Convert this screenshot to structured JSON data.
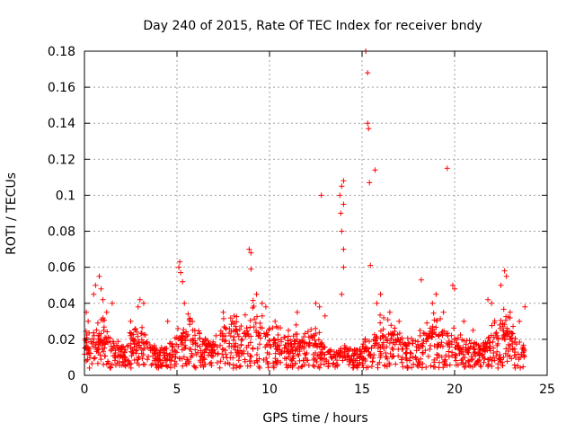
{
  "chart_data": {
    "type": "scatter",
    "title": "Day 240 of 2015, Rate Of TEC Index for receiver bndy",
    "xlabel": "GPS time / hours",
    "ylabel": "ROTI / TECUs",
    "xlim": [
      0,
      25
    ],
    "ylim": [
      0,
      0.18
    ],
    "xticks": [
      0,
      5,
      10,
      15,
      20,
      25
    ],
    "yticks": [
      0,
      0.02,
      0.04,
      0.06,
      0.08,
      0.1,
      0.12,
      0.14,
      0.16,
      0.18
    ],
    "xtick_labels": [
      "0",
      "5",
      "10",
      "15",
      "20",
      "25"
    ],
    "ytick_labels": [
      "0",
      "0.02",
      "0.04",
      "0.06",
      "0.08",
      "0.1",
      "0.12",
      "0.14",
      "0.16",
      "0.18"
    ],
    "grid": true,
    "marker": "+",
    "color": "#ff0000",
    "series": [
      {
        "name": "ROTI",
        "points": [
          [
            0.1,
            0.035
          ],
          [
            0.2,
            0.03
          ],
          [
            0.5,
            0.045
          ],
          [
            0.6,
            0.05
          ],
          [
            0.8,
            0.055
          ],
          [
            0.9,
            0.048
          ],
          [
            1.0,
            0.042
          ],
          [
            1.2,
            0.035
          ],
          [
            1.5,
            0.04
          ],
          [
            2.5,
            0.03
          ],
          [
            2.9,
            0.038
          ],
          [
            3.0,
            0.042
          ],
          [
            3.2,
            0.04
          ],
          [
            4.5,
            0.03
          ],
          [
            5.1,
            0.06
          ],
          [
            5.15,
            0.063
          ],
          [
            5.2,
            0.057
          ],
          [
            5.3,
            0.052
          ],
          [
            5.4,
            0.04
          ],
          [
            5.6,
            0.034
          ],
          [
            7.5,
            0.035
          ],
          [
            8.0,
            0.03
          ],
          [
            8.9,
            0.07
          ],
          [
            9.0,
            0.068
          ],
          [
            9.0,
            0.059
          ],
          [
            9.3,
            0.045
          ],
          [
            9.6,
            0.04
          ],
          [
            9.8,
            0.038
          ],
          [
            10.3,
            0.03
          ],
          [
            11.5,
            0.035
          ],
          [
            12.5,
            0.04
          ],
          [
            12.7,
            0.038
          ],
          [
            12.8,
            0.1
          ],
          [
            13.0,
            0.033
          ],
          [
            13.8,
            0.1
          ],
          [
            13.85,
            0.09
          ],
          [
            13.9,
            0.08
          ],
          [
            13.9,
            0.105
          ],
          [
            14.0,
            0.108
          ],
          [
            14.0,
            0.095
          ],
          [
            14.0,
            0.07
          ],
          [
            14.0,
            0.06
          ],
          [
            13.9,
            0.045
          ],
          [
            15.2,
            0.18
          ],
          [
            15.3,
            0.168
          ],
          [
            15.3,
            0.14
          ],
          [
            15.35,
            0.137
          ],
          [
            15.4,
            0.107
          ],
          [
            15.45,
            0.061
          ],
          [
            15.7,
            0.114
          ],
          [
            15.8,
            0.04
          ],
          [
            16.0,
            0.045
          ],
          [
            16.5,
            0.035
          ],
          [
            17.0,
            0.03
          ],
          [
            18.2,
            0.053
          ],
          [
            18.8,
            0.04
          ],
          [
            19.0,
            0.045
          ],
          [
            19.4,
            0.035
          ],
          [
            19.6,
            0.115
          ],
          [
            19.9,
            0.05
          ],
          [
            20.0,
            0.048
          ],
          [
            20.5,
            0.03
          ],
          [
            21.0,
            0.025
          ],
          [
            21.8,
            0.042
          ],
          [
            22.0,
            0.04
          ],
          [
            22.5,
            0.05
          ],
          [
            22.7,
            0.058
          ],
          [
            22.8,
            0.055
          ],
          [
            23.0,
            0.035
          ],
          [
            23.5,
            0.03
          ],
          [
            23.8,
            0.038
          ]
        ],
        "baseline": [
          [
            0.0,
            0.014
          ],
          [
            0.5,
            0.016
          ],
          [
            1.0,
            0.018
          ],
          [
            1.5,
            0.013
          ],
          [
            2.0,
            0.01
          ],
          [
            2.5,
            0.014
          ],
          [
            3.0,
            0.016
          ],
          [
            3.5,
            0.012
          ],
          [
            4.0,
            0.008
          ],
          [
            4.5,
            0.01
          ],
          [
            5.0,
            0.014
          ],
          [
            5.5,
            0.02
          ],
          [
            6.0,
            0.015
          ],
          [
            6.5,
            0.012
          ],
          [
            7.0,
            0.011
          ],
          [
            7.5,
            0.018
          ],
          [
            8.0,
            0.02
          ],
          [
            8.5,
            0.016
          ],
          [
            9.0,
            0.024
          ],
          [
            9.5,
            0.02
          ],
          [
            10.0,
            0.015
          ],
          [
            10.5,
            0.016
          ],
          [
            11.0,
            0.014
          ],
          [
            11.5,
            0.016
          ],
          [
            12.0,
            0.014
          ],
          [
            12.5,
            0.016
          ],
          [
            13.0,
            0.01
          ],
          [
            13.5,
            0.008
          ],
          [
            14.0,
            0.01
          ],
          [
            14.5,
            0.008
          ],
          [
            15.0,
            0.01
          ],
          [
            15.5,
            0.014
          ],
          [
            16.0,
            0.02
          ],
          [
            16.5,
            0.018
          ],
          [
            17.0,
            0.014
          ],
          [
            17.5,
            0.012
          ],
          [
            18.0,
            0.014
          ],
          [
            18.5,
            0.018
          ],
          [
            19.0,
            0.02
          ],
          [
            19.5,
            0.016
          ],
          [
            20.0,
            0.015
          ],
          [
            20.5,
            0.012
          ],
          [
            21.0,
            0.01
          ],
          [
            21.5,
            0.011
          ],
          [
            22.0,
            0.016
          ],
          [
            22.5,
            0.022
          ],
          [
            23.0,
            0.018
          ],
          [
            23.5,
            0.012
          ],
          [
            23.8,
            0.01
          ]
        ]
      }
    ]
  }
}
